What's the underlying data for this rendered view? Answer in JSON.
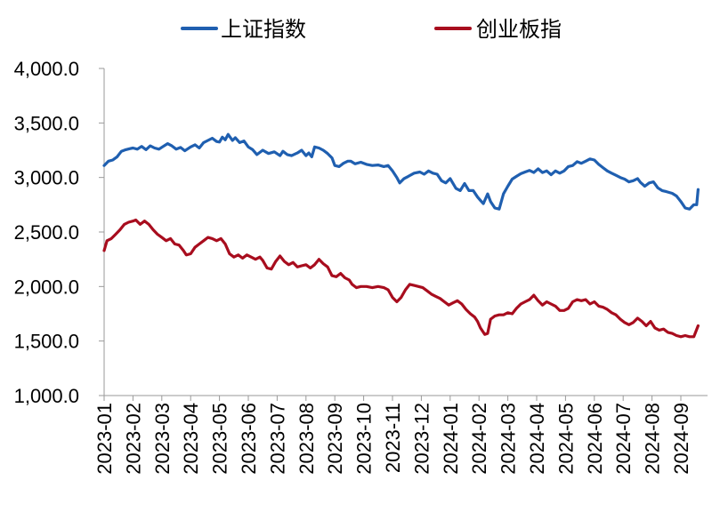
{
  "chart_data": {
    "type": "line",
    "title": "",
    "xlabel": "",
    "ylabel": "",
    "ylim": [
      1000,
      4000
    ],
    "yticks": [
      "1,000.0",
      "1,500.0",
      "2,000.0",
      "2,500.0",
      "3,000.0",
      "3,500.0",
      "4,000.0"
    ],
    "ytick_values": [
      1000,
      1500,
      2000,
      2500,
      3000,
      3500,
      4000
    ],
    "x_categories": [
      "2023-01",
      "2023-02",
      "2023-03",
      "2023-04",
      "2023-05",
      "2023-06",
      "2023-07",
      "2023-08",
      "2023-09",
      "2023-10",
      "2023-11",
      "2023-12",
      "2024-01",
      "2024-02",
      "2024-03",
      "2024-04",
      "2024-05",
      "2024-06",
      "2024-07",
      "2024-08",
      "2024-09"
    ],
    "xlim_months": [
      0,
      20.6
    ],
    "grid": false,
    "legend_position": "top-center",
    "series": [
      {
        "name": "上证指数",
        "color": "#1f5fb0",
        "points": [
          [
            0.0,
            3110
          ],
          [
            0.15,
            3150
          ],
          [
            0.3,
            3160
          ],
          [
            0.45,
            3190
          ],
          [
            0.6,
            3240
          ],
          [
            0.75,
            3255
          ],
          [
            0.9,
            3265
          ],
          [
            1.0,
            3270
          ],
          [
            1.15,
            3260
          ],
          [
            1.3,
            3285
          ],
          [
            1.45,
            3255
          ],
          [
            1.6,
            3290
          ],
          [
            1.75,
            3270
          ],
          [
            1.9,
            3260
          ],
          [
            2.05,
            3285
          ],
          [
            2.2,
            3310
          ],
          [
            2.35,
            3290
          ],
          [
            2.5,
            3260
          ],
          [
            2.65,
            3275
          ],
          [
            2.8,
            3245
          ],
          [
            3.0,
            3280
          ],
          [
            3.15,
            3300
          ],
          [
            3.3,
            3270
          ],
          [
            3.45,
            3320
          ],
          [
            3.6,
            3340
          ],
          [
            3.75,
            3360
          ],
          [
            3.9,
            3330
          ],
          [
            4.0,
            3325
          ],
          [
            4.1,
            3370
          ],
          [
            4.2,
            3345
          ],
          [
            4.3,
            3395
          ],
          [
            4.45,
            3340
          ],
          [
            4.55,
            3365
          ],
          [
            4.7,
            3320
          ],
          [
            4.85,
            3335
          ],
          [
            5.0,
            3280
          ],
          [
            5.15,
            3255
          ],
          [
            5.3,
            3210
          ],
          [
            5.5,
            3250
          ],
          [
            5.7,
            3220
          ],
          [
            5.9,
            3235
          ],
          [
            6.1,
            3200
          ],
          [
            6.2,
            3240
          ],
          [
            6.35,
            3210
          ],
          [
            6.5,
            3200
          ],
          [
            6.7,
            3225
          ],
          [
            6.85,
            3250
          ],
          [
            7.0,
            3200
          ],
          [
            7.1,
            3225
          ],
          [
            7.2,
            3190
          ],
          [
            7.3,
            3280
          ],
          [
            7.45,
            3270
          ],
          [
            7.6,
            3250
          ],
          [
            7.75,
            3220
          ],
          [
            7.9,
            3180
          ],
          [
            8.0,
            3110
          ],
          [
            8.15,
            3100
          ],
          [
            8.3,
            3130
          ],
          [
            8.45,
            3150
          ],
          [
            8.55,
            3150
          ],
          [
            8.7,
            3125
          ],
          [
            8.9,
            3140
          ],
          [
            9.1,
            3120
          ],
          [
            9.3,
            3110
          ],
          [
            9.5,
            3115
          ],
          [
            9.7,
            3100
          ],
          [
            9.85,
            3110
          ],
          [
            10.0,
            3060
          ],
          [
            10.15,
            3000
          ],
          [
            10.25,
            2950
          ],
          [
            10.4,
            2990
          ],
          [
            10.55,
            3010
          ],
          [
            10.75,
            3040
          ],
          [
            10.95,
            3050
          ],
          [
            11.1,
            3030
          ],
          [
            11.25,
            3060
          ],
          [
            11.4,
            3040
          ],
          [
            11.55,
            3030
          ],
          [
            11.7,
            2970
          ],
          [
            11.85,
            2950
          ],
          [
            12.0,
            2990
          ],
          [
            12.2,
            2900
          ],
          [
            12.35,
            2880
          ],
          [
            12.5,
            2945
          ],
          [
            12.65,
            2880
          ],
          [
            12.8,
            2880
          ],
          [
            12.95,
            2820
          ],
          [
            13.05,
            2790
          ],
          [
            13.15,
            2760
          ],
          [
            13.3,
            2850
          ],
          [
            13.4,
            2780
          ],
          [
            13.55,
            2720
          ],
          [
            13.7,
            2710
          ],
          [
            13.85,
            2850
          ],
          [
            14.0,
            2920
          ],
          [
            14.15,
            2985
          ],
          [
            14.3,
            3010
          ],
          [
            14.45,
            3035
          ],
          [
            14.6,
            3050
          ],
          [
            14.75,
            3065
          ],
          [
            14.9,
            3045
          ],
          [
            15.05,
            3080
          ],
          [
            15.2,
            3045
          ],
          [
            15.35,
            3060
          ],
          [
            15.5,
            3025
          ],
          [
            15.65,
            3060
          ],
          [
            15.8,
            3040
          ],
          [
            15.95,
            3060
          ],
          [
            16.1,
            3100
          ],
          [
            16.25,
            3110
          ],
          [
            16.4,
            3145
          ],
          [
            16.55,
            3130
          ],
          [
            16.7,
            3150
          ],
          [
            16.85,
            3170
          ],
          [
            17.0,
            3160
          ],
          [
            17.15,
            3120
          ],
          [
            17.3,
            3090
          ],
          [
            17.45,
            3060
          ],
          [
            17.6,
            3040
          ],
          [
            17.75,
            3020
          ],
          [
            17.9,
            3000
          ],
          [
            18.05,
            2985
          ],
          [
            18.2,
            2960
          ],
          [
            18.35,
            2970
          ],
          [
            18.5,
            2990
          ],
          [
            18.6,
            2955
          ],
          [
            18.75,
            2920
          ],
          [
            18.9,
            2950
          ],
          [
            19.05,
            2960
          ],
          [
            19.2,
            2905
          ],
          [
            19.35,
            2880
          ],
          [
            19.5,
            2870
          ],
          [
            19.7,
            2855
          ],
          [
            19.85,
            2830
          ],
          [
            20.0,
            2780
          ],
          [
            20.15,
            2720
          ],
          [
            20.3,
            2710
          ],
          [
            20.45,
            2750
          ],
          [
            20.55,
            2750
          ],
          [
            20.6,
            2890
          ]
        ]
      },
      {
        "name": "创业板指",
        "color": "#a80d1e",
        "points": [
          [
            0.0,
            2330
          ],
          [
            0.1,
            2420
          ],
          [
            0.25,
            2440
          ],
          [
            0.4,
            2480
          ],
          [
            0.55,
            2520
          ],
          [
            0.7,
            2570
          ],
          [
            0.85,
            2590
          ],
          [
            1.0,
            2600
          ],
          [
            1.1,
            2610
          ],
          [
            1.25,
            2570
          ],
          [
            1.4,
            2600
          ],
          [
            1.55,
            2570
          ],
          [
            1.7,
            2520
          ],
          [
            1.85,
            2480
          ],
          [
            2.0,
            2450
          ],
          [
            2.15,
            2420
          ],
          [
            2.3,
            2440
          ],
          [
            2.45,
            2390
          ],
          [
            2.6,
            2380
          ],
          [
            2.75,
            2330
          ],
          [
            2.85,
            2290
          ],
          [
            3.0,
            2300
          ],
          [
            3.15,
            2360
          ],
          [
            3.3,
            2390
          ],
          [
            3.45,
            2420
          ],
          [
            3.6,
            2450
          ],
          [
            3.75,
            2440
          ],
          [
            3.9,
            2420
          ],
          [
            4.05,
            2440
          ],
          [
            4.2,
            2390
          ],
          [
            4.35,
            2300
          ],
          [
            4.5,
            2270
          ],
          [
            4.65,
            2290
          ],
          [
            4.8,
            2260
          ],
          [
            4.95,
            2290
          ],
          [
            5.1,
            2270
          ],
          [
            5.25,
            2250
          ],
          [
            5.4,
            2270
          ],
          [
            5.5,
            2240
          ],
          [
            5.65,
            2170
          ],
          [
            5.8,
            2160
          ],
          [
            5.95,
            2230
          ],
          [
            6.1,
            2280
          ],
          [
            6.25,
            2230
          ],
          [
            6.4,
            2200
          ],
          [
            6.55,
            2220
          ],
          [
            6.7,
            2180
          ],
          [
            6.85,
            2190
          ],
          [
            7.0,
            2200
          ],
          [
            7.15,
            2170
          ],
          [
            7.3,
            2200
          ],
          [
            7.45,
            2250
          ],
          [
            7.6,
            2210
          ],
          [
            7.75,
            2180
          ],
          [
            7.9,
            2100
          ],
          [
            8.05,
            2090
          ],
          [
            8.2,
            2120
          ],
          [
            8.35,
            2080
          ],
          [
            8.5,
            2060
          ],
          [
            8.6,
            2020
          ],
          [
            8.75,
            1990
          ],
          [
            8.9,
            2000
          ],
          [
            9.1,
            2000
          ],
          [
            9.3,
            1990
          ],
          [
            9.5,
            2000
          ],
          [
            9.7,
            1990
          ],
          [
            9.85,
            1970
          ],
          [
            10.0,
            1900
          ],
          [
            10.15,
            1860
          ],
          [
            10.3,
            1900
          ],
          [
            10.45,
            1970
          ],
          [
            10.6,
            2020
          ],
          [
            10.75,
            2010
          ],
          [
            10.9,
            2000
          ],
          [
            11.05,
            1990
          ],
          [
            11.2,
            1960
          ],
          [
            11.35,
            1930
          ],
          [
            11.5,
            1910
          ],
          [
            11.65,
            1890
          ],
          [
            11.8,
            1860
          ],
          [
            11.95,
            1830
          ],
          [
            12.1,
            1850
          ],
          [
            12.25,
            1870
          ],
          [
            12.4,
            1840
          ],
          [
            12.55,
            1790
          ],
          [
            12.7,
            1750
          ],
          [
            12.85,
            1720
          ],
          [
            12.95,
            1680
          ],
          [
            13.05,
            1620
          ],
          [
            13.2,
            1560
          ],
          [
            13.3,
            1570
          ],
          [
            13.4,
            1700
          ],
          [
            13.55,
            1730
          ],
          [
            13.7,
            1740
          ],
          [
            13.85,
            1740
          ],
          [
            14.0,
            1760
          ],
          [
            14.15,
            1750
          ],
          [
            14.3,
            1800
          ],
          [
            14.45,
            1840
          ],
          [
            14.6,
            1860
          ],
          [
            14.75,
            1880
          ],
          [
            14.9,
            1920
          ],
          [
            15.05,
            1870
          ],
          [
            15.2,
            1830
          ],
          [
            15.35,
            1860
          ],
          [
            15.5,
            1840
          ],
          [
            15.65,
            1820
          ],
          [
            15.8,
            1780
          ],
          [
            15.95,
            1780
          ],
          [
            16.1,
            1800
          ],
          [
            16.25,
            1860
          ],
          [
            16.4,
            1880
          ],
          [
            16.55,
            1870
          ],
          [
            16.7,
            1880
          ],
          [
            16.85,
            1840
          ],
          [
            17.0,
            1860
          ],
          [
            17.15,
            1820
          ],
          [
            17.3,
            1810
          ],
          [
            17.45,
            1790
          ],
          [
            17.6,
            1760
          ],
          [
            17.75,
            1740
          ],
          [
            17.9,
            1700
          ],
          [
            18.05,
            1670
          ],
          [
            18.2,
            1650
          ],
          [
            18.35,
            1670
          ],
          [
            18.5,
            1710
          ],
          [
            18.65,
            1680
          ],
          [
            18.8,
            1640
          ],
          [
            18.95,
            1680
          ],
          [
            19.1,
            1620
          ],
          [
            19.25,
            1600
          ],
          [
            19.4,
            1610
          ],
          [
            19.55,
            1580
          ],
          [
            19.7,
            1570
          ],
          [
            19.85,
            1550
          ],
          [
            20.0,
            1540
          ],
          [
            20.15,
            1550
          ],
          [
            20.3,
            1540
          ],
          [
            20.45,
            1540
          ],
          [
            20.6,
            1640
          ]
        ]
      }
    ]
  }
}
